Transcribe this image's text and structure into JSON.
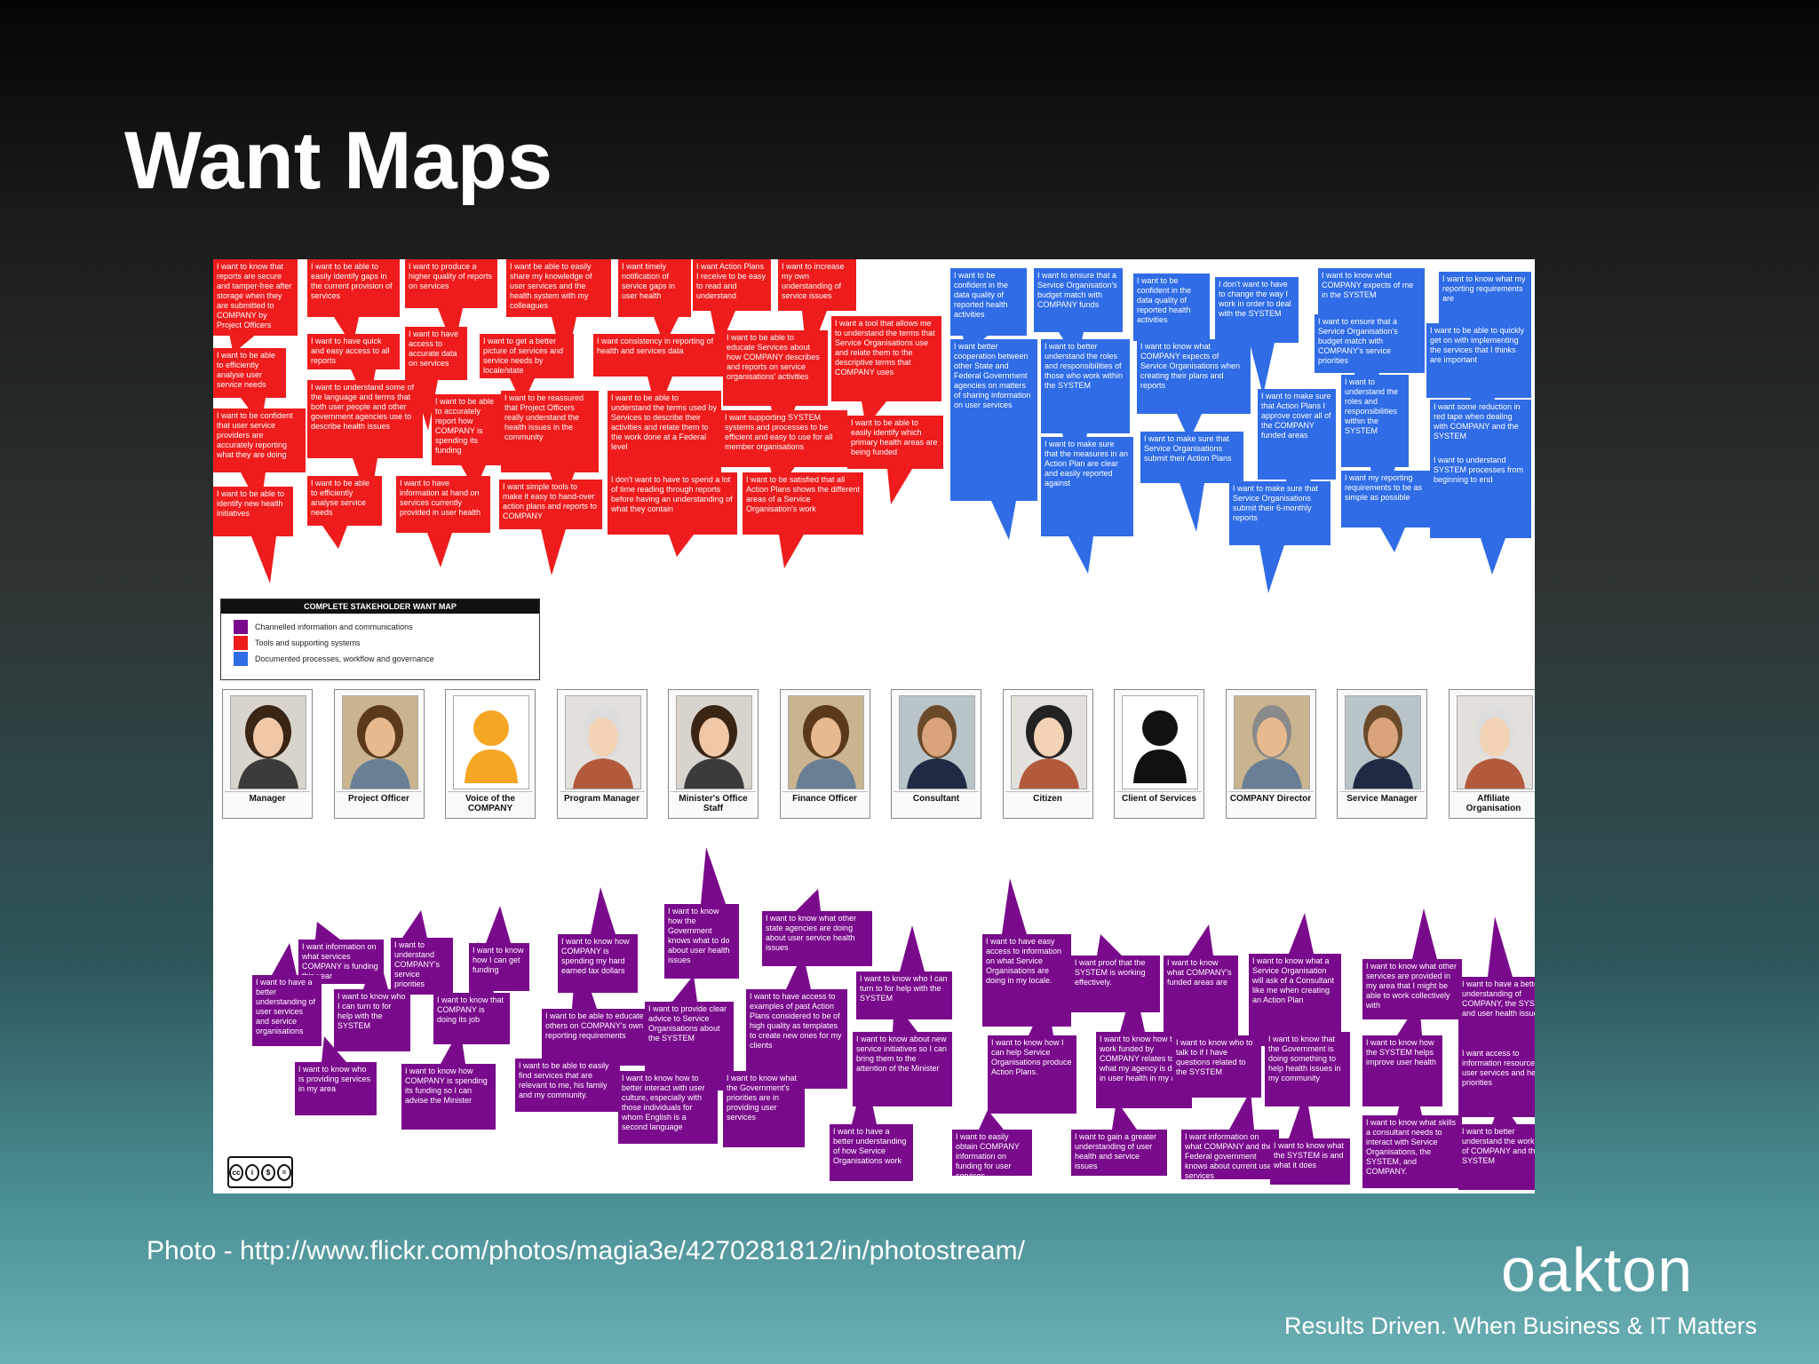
{
  "slide": {
    "title": "Want Maps",
    "credit": "Photo - http://www.flickr.com/photos/magia3e/4270281812/in/photostream/",
    "logo": "oakton",
    "tagline": "Results Driven. When Business & IT Matters"
  },
  "colors": {
    "red": "#ee1c1c",
    "blue": "#2f6ce6",
    "purple": "#7a0a8c"
  },
  "legend": {
    "title": "COMPLETE STAKEHOLDER WANT MAP",
    "items": [
      {
        "label": "Channelled information and communications",
        "color": "#7a0a8c"
      },
      {
        "label": "Tools and supporting systems",
        "color": "#ee1c1c"
      },
      {
        "label": "Documented processes, workflow and governance",
        "color": "#2f6ce6"
      }
    ]
  },
  "personas": [
    {
      "label": "Manager",
      "icon": "woman-portrait"
    },
    {
      "label": "Project Officer",
      "icon": "woman-portrait"
    },
    {
      "label": "Voice of the COMPANY",
      "icon": "person-silhouette-orange"
    },
    {
      "label": "Program Manager",
      "icon": "man-portrait"
    },
    {
      "label": "Minister's Office Staff",
      "icon": "woman-portrait"
    },
    {
      "label": "Finance Officer",
      "icon": "woman-portrait"
    },
    {
      "label": "Consultant",
      "icon": "man-portrait"
    },
    {
      "label": "Citizen",
      "icon": "woman-portrait"
    },
    {
      "label": "Client of Services",
      "icon": "person-silhouette-black"
    },
    {
      "label": "COMPANY Director",
      "icon": "man-portrait"
    },
    {
      "label": "Service Manager",
      "icon": "man-portrait"
    },
    {
      "label": "Affiliate Organisation",
      "icon": "man-portrait"
    }
  ],
  "red_bubbles": [
    "I want to know that reports are secure and tamper-free after storage when they are submitted to COMPANY by Project Officers",
    "I want to be able to easily identify gaps in the current provision of services",
    "I want to produce a higher quality of reports on services",
    "I want be able to easily share my knowledge of user services and the health system with my colleagues",
    "I want timely notification of service gaps in user health",
    "I want Action Plans I receive to be easy to read and understand",
    "I want to increase my own understanding of service issues",
    "I want to be able to efficiently analyse user service needs",
    "I want to have quick and easy access to all reports",
    "I want to have access to accurate data on services",
    "I want to get a better picture of services and service needs by locale/state",
    "I want consistency in reporting of health and services data",
    "I want to be able to educate Services about how COMPANY describes and reports on service organisations' activities",
    "I want a tool that allows me to understand the terms that Service Organisations use and relate them to the descriptive terms that COMPANY uses",
    "I want to be confident that user service providers are accurately reporting what they are doing",
    "I want to understand some of the language and terms that both user people and other government agencies use to describe health issues",
    "I want to be able to accurately report how COMPANY is spending its funding",
    "I want to be reassured that Project Officers really understand the health issues in the community",
    "I want to be able to understand the terms used by Services to describe their activities and relate them to the work done at a Federal level",
    "I want supporting SYSTEM systems and processes to be efficient and easy to use for all member organisations",
    "I want to be able to easily identify which primary health areas are being funded",
    "I want to be able to identify new health initiatives",
    "I want to be able to efficiently analyse service needs",
    "I want to have information at hand on services currently provided in user health",
    "I want simple tools to make it easy to hand-over action plans and reports to COMPANY",
    "I don't want to have to spend a lot of time reading through reports before having an understanding of what they contain",
    "I want to be satisfied that all Action Plans shows the different areas of a Service Organisation's work"
  ],
  "blue_bubbles": [
    "I want to be confident in the data quality of reported health activities",
    "I want to ensure that a Service Organisation's budget match with COMPANY funds",
    "I want to be confident in the data quality of reported health activities",
    "I don't want to have to change the way I work in order to deal with the SYSTEM",
    "I want to know what COMPANY expects of me in the SYSTEM",
    "I want to know what my reporting requirements are",
    "I want to ensure that a Service Organisation's budget match with COMPANY's service priorities",
    "I want to be able to quickly get on with implementing the services that I thinks are important",
    "I want better cooperation between other State and Federal Government agencies on matters of sharing information on user services",
    "I want to better understand the roles and responsibilities of those who work within the SYSTEM",
    "I want to know what COMPANY expects of Service Organisations when creating their plans and reports",
    "I want to make sure that Action Plans I approve cover all of the COMPANY funded areas",
    "I want to understand the roles and responsibilities within the SYSTEM",
    "I want some reduction in red tape when dealing with COMPANY and the SYSTEM",
    "I want to make sure that the measures in an Action Plan are clear and easily reported against",
    "I want to make sure that Service Organisations submit their Action Plans",
    "I want my reporting requirements to be as simple as possible",
    "I want to understand SYSTEM processes from beginning to end",
    "I want to make sure that Service Organisations submit their 6-monthly reports"
  ],
  "purple_bubbles": [
    "I want information on what services COMPANY is funding this year",
    "I want to understand COMPANY's service priorities",
    "I want to know how I can get funding",
    "I want to know how COMPANY is spending my hard earned tax dollars",
    "I want to know how the Government knows what to do about user health issues",
    "I want to know what other state agencies are doing about user service health issues",
    "I want to have a better understanding of user services and service organisations",
    "I want to know who I can turn to for help with the SYSTEM",
    "I want to know that COMPANY is doing its job",
    "I want to be able to educate others on COMPANY's own reporting requirements",
    "I want to provide clear advice to Service Organisations about the SYSTEM",
    "I want to have access to examples of past Action Plans considered to be of high quality as templates to create new ones for my clients",
    "I want to know who I can turn to for help with the SYSTEM",
    "I want to have easy access to information on what Service Organisations are doing in my locale.",
    "I want proof that the SYSTEM is working effectively.",
    "I want to know what COMPANY's funded areas are",
    "I want to know what a Service Organisation will ask of a Consultant like me when creating an Action Plan",
    "I want to know what other services are provided in my area that I might be able to work collectively with",
    "I want to have a better understanding of COMPANY, the SYSTEM and user health issues",
    "I want to know who is providing services in my area",
    "I want to know how COMPANY is spending its funding so I can advise the Minister",
    "I want to be able to easily find services that are relevant to me, his family and my community.",
    "I want to know how to better interact with user culture, especially with those individuals for whom English is a second language",
    "I want to know what the Government's priorities are in providing user services",
    "I want to know about new service initiatives so I can bring them to the attention of the Minister",
    "I want to know how I can help Service Organisations produce Action Plans.",
    "I want to know how the work funded by COMPANY relates to what my agency is doing in user health in my area",
    "I want to know who to talk to if I have questions related to the SYSTEM",
    "I want to know that the Government is doing something to help health issues in my community",
    "I want to know how the SYSTEM helps improve user health",
    "I want access to information resources on user services and health priorities",
    "I want to have a better understanding of how Service Organisations work",
    "I want to easily obtain COMPANY information on funding for user services",
    "I want to gain a greater understanding of user health and service issues",
    "I want information on what COMPANY and the Federal government knows about current user services",
    "I want to know what the SYSTEM is and what it does",
    "I want to know what skills a consultant needs to interact with Service Organisations, the SYSTEM, and COMPANY.",
    "I want to better understand the work of COMPANY and the SYSTEM"
  ]
}
